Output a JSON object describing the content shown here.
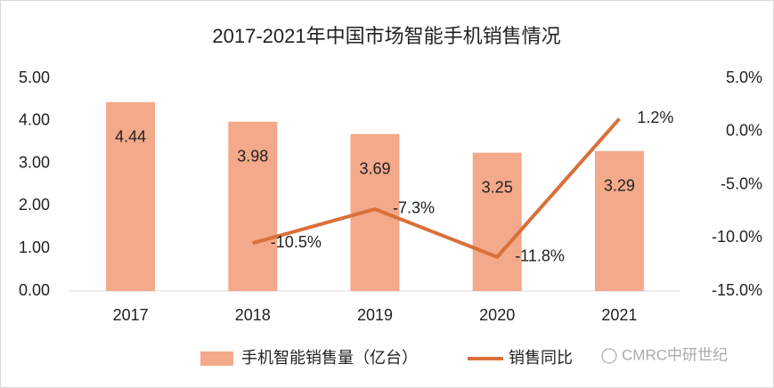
{
  "chart_data": {
    "type": "bar_line",
    "title": "2017-2021年中国市场智能手机销售情况",
    "categories": [
      "2017",
      "2018",
      "2019",
      "2020",
      "2021"
    ],
    "series": [
      {
        "name": "手机智能销售量（亿台）",
        "type": "bar",
        "color": "#f3a98a",
        "values": [
          4.44,
          3.98,
          3.69,
          3.25,
          3.29
        ]
      },
      {
        "name": "销售同比",
        "type": "line",
        "axis": "y2",
        "color": "#d9703a",
        "values": [
          null,
          -10.5,
          -7.3,
          -11.8,
          1.2
        ],
        "value_labels": [
          null,
          "-10.5%",
          "-7.3%",
          "-11.8%",
          "1.2%"
        ]
      }
    ],
    "ylim": [
      0,
      5
    ],
    "yticks": [
      {
        "value": 0,
        "label": "0.00"
      },
      {
        "value": 1,
        "label": "1.00"
      },
      {
        "value": 2,
        "label": "2.00"
      },
      {
        "value": 3,
        "label": "3.00"
      },
      {
        "value": 4,
        "label": "4.00"
      },
      {
        "value": 5,
        "label": "5.00"
      }
    ],
    "y2lim": [
      -15,
      5
    ],
    "y2ticks": [
      {
        "value": -15,
        "label": "-15.0%"
      },
      {
        "value": -10,
        "label": "-10.0%"
      },
      {
        "value": -5,
        "label": "-5.0%"
      },
      {
        "value": 0,
        "label": "0.0%"
      },
      {
        "value": 5,
        "label": "5.0%"
      }
    ],
    "legend": "bottom",
    "watermark": "CMRC中研世纪"
  }
}
